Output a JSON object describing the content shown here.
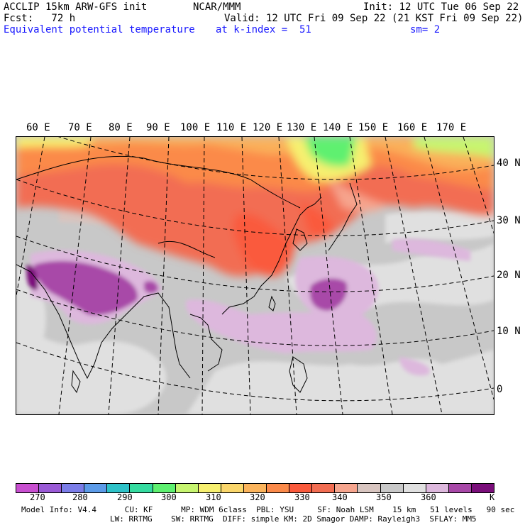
{
  "header": {
    "line1_left": "ACCLIP 15km ARW-GFS init",
    "line1_mid": "NCAR/MMM",
    "line1_right": "Init: 12 UTC Tue 06 Sep 22",
    "fcst": "Fcst:   72 h",
    "valid": "Valid: 12 UTC Fri 09 Sep 22 (21 KST Fri 09 Sep 22)",
    "field": "Equivalent potential temperature",
    "level": "at k-index =  51",
    "smooth": "sm= 2"
  },
  "lon_labels": [
    "60 E",
    "70 E",
    "80 E",
    "90 E",
    "100 E",
    "110 E",
    "120 E",
    "130 E",
    "140 E",
    "150 E",
    "160 E",
    "170 E"
  ],
  "lat_labels": [
    "40 N",
    "30 N",
    "20 N",
    "10 N",
    "0"
  ],
  "colorbar": {
    "colors": [
      "#c84fd0",
      "#9a5ad6",
      "#7b7de8",
      "#5c9be8",
      "#2ec2c8",
      "#35dba0",
      "#5ef070",
      "#c7f570",
      "#f7f070",
      "#fad66b",
      "#fbb45c",
      "#fb8a4a",
      "#fa5a3c",
      "#f26d52",
      "#f6a58e",
      "#d8c5c0",
      "#c8c8c8",
      "#e0e0e0",
      "#ddb8dd",
      "#a848a8",
      "#7a0e7a"
    ],
    "labels": [
      "270",
      "280",
      "290",
      "300",
      "310",
      "320",
      "330",
      "340",
      "350",
      "360",
      "K"
    ]
  },
  "footer": {
    "line1": "Model Info: V4.4      CU: KF      MP: WDM 6class  PBL: YSU     SF: Noah LSM    15 km   51 levels   90 sec",
    "line2": "LW: RRTMG    SW: RRTMG  DIFF: simple KM: 2D Smagor DAMP: Rayleigh3  SFLAY: MM5"
  }
}
